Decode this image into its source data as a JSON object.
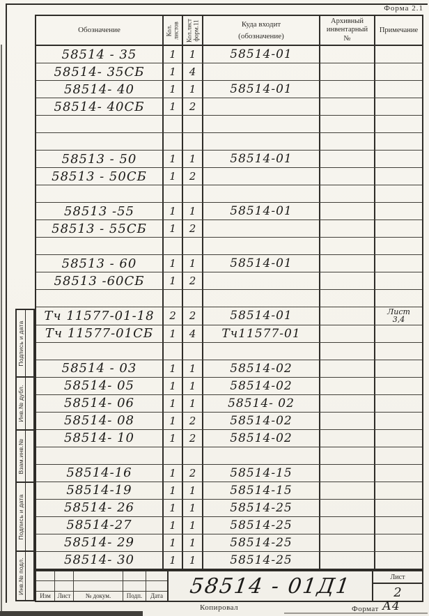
{
  "form_label": "Форма 2.1",
  "table": {
    "headers": {
      "designation": "Обозначение",
      "sheets": "Кол. листов",
      "sheets_form": "Кол.лист форм.11",
      "parent_line1": "Куда входит",
      "parent_line2": "(обозначение)",
      "archive_line1": "Архивный",
      "archive_line2": "инвентарный",
      "archive_line3": "№",
      "note": "Примечание"
    },
    "rows": [
      {
        "designation": "58514 - 35",
        "sheets": "1",
        "sheets_form": "1",
        "parent": "58514-01",
        "archive": "",
        "note": ""
      },
      {
        "designation": "58514- 35СБ",
        "sheets": "1",
        "sheets_form": "4",
        "parent": "",
        "archive": "",
        "note": ""
      },
      {
        "designation": "58514- 40",
        "sheets": "1",
        "sheets_form": "1",
        "parent": "58514-01",
        "archive": "",
        "note": ""
      },
      {
        "designation": "58514- 40СБ",
        "sheets": "1",
        "sheets_form": "2",
        "parent": "",
        "archive": "",
        "note": ""
      },
      {
        "designation": "",
        "sheets": "",
        "sheets_form": "",
        "parent": "",
        "archive": "",
        "note": ""
      },
      {
        "designation": "",
        "sheets": "",
        "sheets_form": "",
        "parent": "",
        "archive": "",
        "note": ""
      },
      {
        "designation": "58513 - 50",
        "sheets": "1",
        "sheets_form": "1",
        "parent": "58514-01",
        "archive": "",
        "note": ""
      },
      {
        "designation": "58513 - 50СБ",
        "sheets": "1",
        "sheets_form": "2",
        "parent": "",
        "archive": "",
        "note": ""
      },
      {
        "designation": "",
        "sheets": "",
        "sheets_form": "",
        "parent": "",
        "archive": "",
        "note": ""
      },
      {
        "designation": "58513 -55",
        "sheets": "1",
        "sheets_form": "1",
        "parent": "58514-01",
        "archive": "",
        "note": ""
      },
      {
        "designation": "58513 - 55СБ",
        "sheets": "1",
        "sheets_form": "2",
        "parent": "",
        "archive": "",
        "note": ""
      },
      {
        "designation": "",
        "sheets": "",
        "sheets_form": "",
        "parent": "",
        "archive": "",
        "note": ""
      },
      {
        "designation": "58513 - 60",
        "sheets": "1",
        "sheets_form": "1",
        "parent": "58514-01",
        "archive": "",
        "note": ""
      },
      {
        "designation": "58513 -60СБ",
        "sheets": "1",
        "sheets_form": "2",
        "parent": "",
        "archive": "",
        "note": ""
      },
      {
        "designation": "",
        "sheets": "",
        "sheets_form": "",
        "parent": "",
        "archive": "",
        "note": ""
      },
      {
        "designation": "Тч 11577-01-18",
        "sheets": "2",
        "sheets_form": "2",
        "parent": "58514-01",
        "archive": "",
        "note": "Лист 3,4"
      },
      {
        "designation": "Тч 11577-01СБ",
        "sheets": "1",
        "sheets_form": "4",
        "parent": "Тч11577-01",
        "archive": "",
        "note": ""
      },
      {
        "designation": "",
        "sheets": "",
        "sheets_form": "",
        "parent": "",
        "archive": "",
        "note": ""
      },
      {
        "designation": "58514 - 03",
        "sheets": "1",
        "sheets_form": "1",
        "parent": "58514-02",
        "archive": "",
        "note": ""
      },
      {
        "designation": "58514- 05",
        "sheets": "1",
        "sheets_form": "1",
        "parent": "58514-02",
        "archive": "",
        "note": ""
      },
      {
        "designation": "58514- 06",
        "sheets": "1",
        "sheets_form": "1",
        "parent": "58514- 02",
        "archive": "",
        "note": ""
      },
      {
        "designation": "58514- 08",
        "sheets": "1",
        "sheets_form": "2",
        "parent": "58514-02",
        "archive": "",
        "note": ""
      },
      {
        "designation": "58514- 10",
        "sheets": "1",
        "sheets_form": "2",
        "parent": "58514-02",
        "archive": "",
        "note": ""
      },
      {
        "designation": "",
        "sheets": "",
        "sheets_form": "",
        "parent": "",
        "archive": "",
        "note": ""
      },
      {
        "designation": "58514-16",
        "sheets": "1",
        "sheets_form": "2",
        "parent": "58514-15",
        "archive": "",
        "note": ""
      },
      {
        "designation": "58514-19",
        "sheets": "1",
        "sheets_form": "1",
        "parent": "58514-15",
        "archive": "",
        "note": ""
      },
      {
        "designation": "58514- 26",
        "sheets": "1",
        "sheets_form": "1",
        "parent": "58514-25",
        "archive": "",
        "note": ""
      },
      {
        "designation": "58514-27",
        "sheets": "1",
        "sheets_form": "1",
        "parent": "58514-25",
        "archive": "",
        "note": ""
      },
      {
        "designation": "58514- 29",
        "sheets": "1",
        "sheets_form": "1",
        "parent": "58514-25",
        "archive": "",
        "note": ""
      },
      {
        "designation": "58514- 30",
        "sheets": "1",
        "sheets_form": "1",
        "parent": "58514-25",
        "archive": "",
        "note": ""
      }
    ]
  },
  "side_strip": {
    "sections": [
      {
        "label": "Подпись и дата"
      },
      {
        "label": "Инв.№ дубл."
      },
      {
        "label": "Взам.инв.№"
      },
      {
        "label": "Подпись и дата"
      },
      {
        "label": "Инв.№ подл."
      }
    ]
  },
  "title_block": {
    "col_labels": [
      "Изм",
      "Лист",
      "№ докум.",
      "Подп.",
      "Дата"
    ],
    "document_number": "58514 - 01Д1",
    "sheet_label": "Лист",
    "sheet_number": "2"
  },
  "footer": {
    "copied_label": "Копировал",
    "format_label": "Формат",
    "format_value": "А4"
  }
}
